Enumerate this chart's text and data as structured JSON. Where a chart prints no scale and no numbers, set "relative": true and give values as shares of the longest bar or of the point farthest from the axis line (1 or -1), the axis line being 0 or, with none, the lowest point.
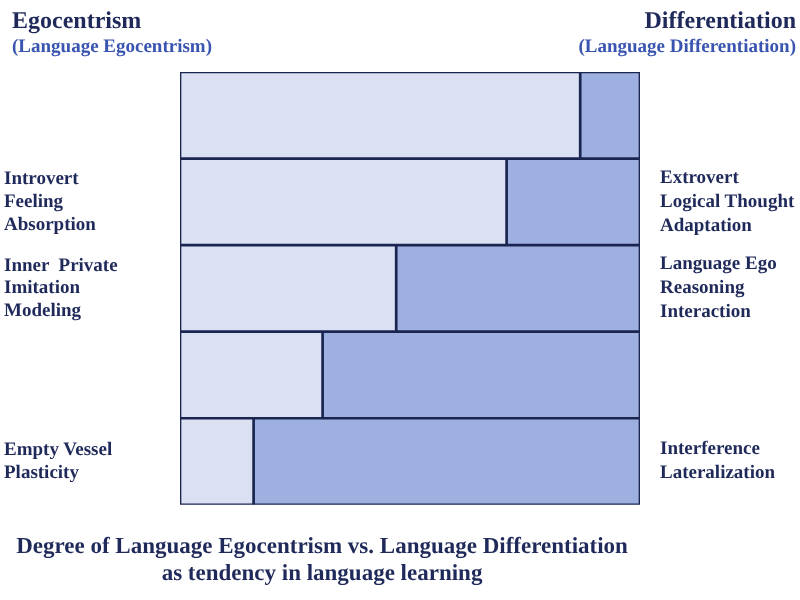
{
  "chart_data": {
    "type": "bar",
    "orientation": "horizontal",
    "stacked": true,
    "relative": true,
    "title": "Degree of Language Egocentrism vs. Language Differentiation\nas tendency in language learning",
    "categories": [
      null,
      "Introvert\nFeeling\nAbsorption",
      "Inner  Private\nImitation\nModeling",
      null,
      "Empty Vessel\nPlasticity"
    ],
    "series": [
      {
        "name": "Egocentrism\n(Language Egocentrism)",
        "color": "#dbe0f3",
        "values": [
          0.87,
          0.71,
          0.47,
          0.31,
          0.16
        ]
      },
      {
        "name": "Differentiation\n(Language Differentiation)",
        "color": "#9eb0e0",
        "values": [
          0.13,
          0.29,
          0.53,
          0.69,
          0.84
        ]
      }
    ],
    "annotations": [
      "Extrovert\nLogical Thought\nAdaptation",
      "Language Ego\nReasoning\nInteraction",
      null,
      "Interference\nLateralization"
    ]
  }
}
